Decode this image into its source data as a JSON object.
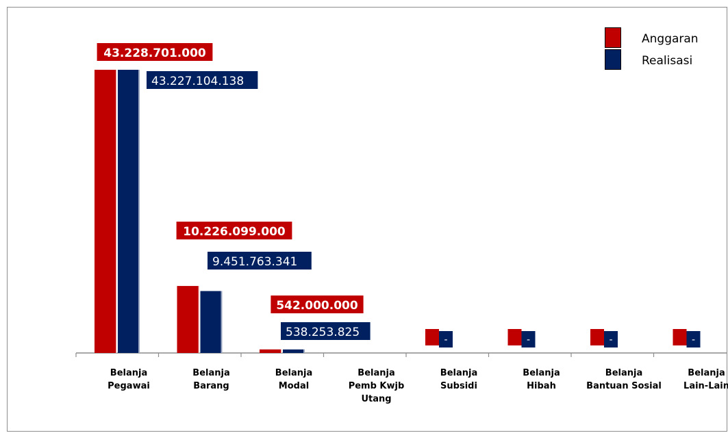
{
  "chart_data": {
    "type": "bar",
    "categories": [
      [
        "Belanja",
        "Pegawai"
      ],
      [
        "Belanja",
        "Barang"
      ],
      [
        "Belanja",
        "Modal"
      ],
      [
        "Belanja",
        "Pemb Kwjb",
        "Utang"
      ],
      [
        "Belanja",
        "Subsidi"
      ],
      [
        "Belanja",
        "Hibah"
      ],
      [
        "Belanja",
        "Bantuan Sosial"
      ],
      [
        "Belanja",
        "Lain-Lain"
      ]
    ],
    "series": [
      {
        "name": "Anggaran",
        "color": "#c00000",
        "values": [
          43228701000,
          10226099000,
          542000000,
          0,
          0,
          0,
          0,
          0
        ],
        "labels": [
          "43.228.701.000",
          "10.226.099.000",
          "542.000.000",
          "",
          "-",
          "-",
          "-",
          "-"
        ]
      },
      {
        "name": "Realisasi",
        "color": "#002060",
        "values": [
          43227104138,
          9451763341,
          538253825,
          0,
          0,
          0,
          0,
          0
        ],
        "labels": [
          "43.227.104.138",
          "9.451.763.341",
          "538.253.825",
          "",
          "-",
          "-",
          "-",
          "-"
        ]
      }
    ],
    "ylim": [
      0,
      43228701000
    ],
    "grid": false,
    "legend_position": "top-right"
  }
}
